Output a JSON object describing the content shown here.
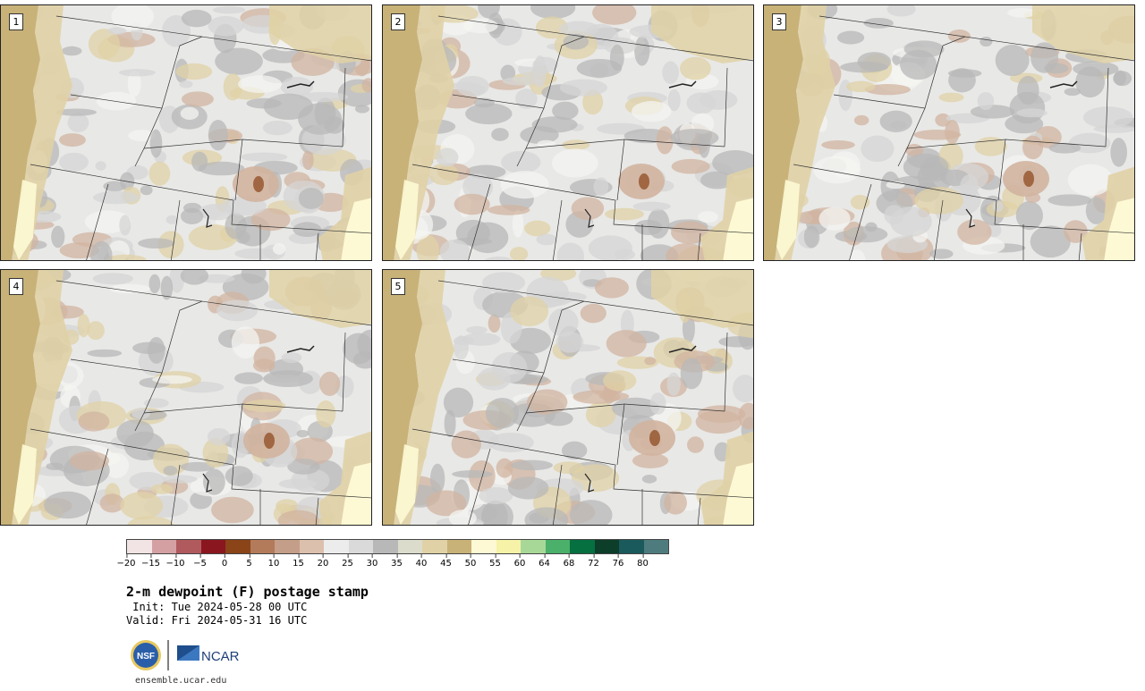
{
  "panels": [
    {
      "label": "1",
      "seed": 11
    },
    {
      "label": "2",
      "seed": 23
    },
    {
      "label": "3",
      "seed": 37
    },
    {
      "label": "4",
      "seed": 41
    },
    {
      "label": "5",
      "seed": 59
    }
  ],
  "colorbar": {
    "colors": [
      "#f2e4e4",
      "#d4a0a2",
      "#b05a5e",
      "#8a1620",
      "#8a4418",
      "#b37b5a",
      "#c49e88",
      "#dcc0ae",
      "#ececec",
      "#dadada",
      "#b8b8b8",
      "#dcdccc",
      "#e0d2a6",
      "#c8b278",
      "#fdf9d4",
      "#f6f2a8",
      "#a8d898",
      "#4ab06a",
      "#067040",
      "#0c3e2a",
      "#1a5a5c",
      "#4e7c7e"
    ],
    "ticks": [
      "−20",
      "−15",
      "−10",
      "−5",
      "0",
      "5",
      "10",
      "15",
      "20",
      "25",
      "30",
      "35",
      "40",
      "45",
      "50",
      "55",
      "60",
      "64",
      "68",
      "72",
      "76",
      "80"
    ]
  },
  "title": "2-m dewpoint (F) postage stamp",
  "init": " Init: Tue 2024-05-28 00 UTC",
  "valid": "Valid: Fri 2024-05-31 16 UTC",
  "logos": {
    "nsf": "NSF",
    "ncar": "NCAR"
  },
  "url": "ensemble.ucar.edu",
  "map_colors": {
    "ocean": "#c8b278",
    "land": "#e8e8e6",
    "gray": "#b8b8b8",
    "lightgray": "#d6d6d6",
    "tan": "#e0d2a6",
    "brown": "#d2b4a0",
    "darkbrown": "#8a4418",
    "yellow": "#fdf9d4",
    "border": "#333333"
  }
}
